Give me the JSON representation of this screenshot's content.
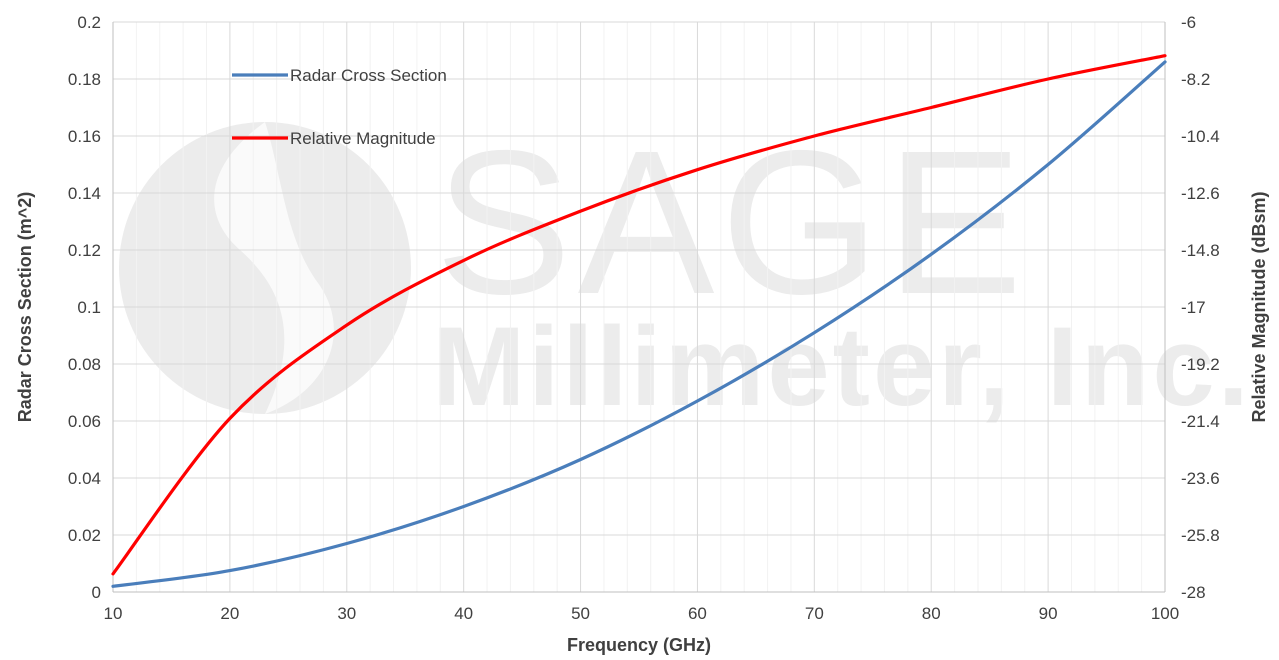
{
  "chart_data": {
    "type": "line",
    "title": "",
    "xlabel": "Frequency (GHz)",
    "ylabel": "Radar Cross Section (m^2)",
    "y2label": "Relative Magnitude (dBsm)",
    "xlim": [
      10,
      100
    ],
    "ylim": [
      0,
      0.2
    ],
    "y2lim": [
      -28,
      -6
    ],
    "x_ticks": [
      "10",
      "20",
      "30",
      "40",
      "50",
      "60",
      "70",
      "80",
      "90",
      "100"
    ],
    "y_ticks": [
      "0",
      "0.02",
      "0.04",
      "0.06",
      "0.08",
      "0.1",
      "0.12",
      "0.14",
      "0.16",
      "0.18",
      "0.2"
    ],
    "y2_ticks": [
      "-28",
      "-25.8",
      "-23.6",
      "-21.4",
      "-19.2",
      "-17",
      "-14.8",
      "-12.6",
      "-10.4",
      "-8.2",
      "-6"
    ],
    "grid": true,
    "legend_position": "top-left",
    "series": [
      {
        "name": "Radar Cross Section",
        "axis": "left",
        "color": "#4a7ebb",
        "x": [
          10,
          20,
          30,
          40,
          50,
          60,
          70,
          80,
          90,
          100
        ],
        "values": [
          0.002,
          0.0075,
          0.017,
          0.03,
          0.0465,
          0.067,
          0.091,
          0.1185,
          0.15,
          0.186
        ]
      },
      {
        "name": "Relative Magnitude",
        "axis": "right",
        "color": "#ff0000",
        "x": [
          10,
          20,
          30,
          40,
          50,
          60,
          70,
          80,
          90,
          100
        ],
        "values": [
          -27.3,
          -21.3,
          -17.7,
          -15.2,
          -13.3,
          -11.7,
          -10.4,
          -9.3,
          -8.2,
          -7.3
        ]
      }
    ]
  },
  "watermark": {
    "line1": "SAGE",
    "line2": "Millimeter, Inc."
  }
}
